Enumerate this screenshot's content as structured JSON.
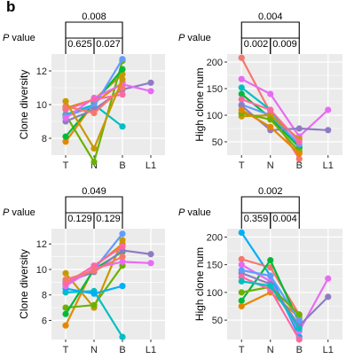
{
  "figure": {
    "panel_letter": "b"
  },
  "colors": [
    "#f8766d",
    "#e58700",
    "#c99800",
    "#a3a500",
    "#6bb100",
    "#00ba38",
    "#00bf7d",
    "#00c0af",
    "#00bcd8",
    "#00b0f6",
    "#619cff",
    "#b983ff",
    "#e76bf3",
    "#fd61d1",
    "#ff67a4",
    "#8e7cc3"
  ],
  "chart_data": [
    {
      "type": "line",
      "title": "",
      "xlabel": "",
      "ylabel": "Clone diversity",
      "categories": [
        "T",
        "N",
        "B",
        "L1"
      ],
      "ylim": [
        7,
        13
      ],
      "yticks": [
        8,
        10,
        12
      ],
      "grid": true,
      "pvalue_label": "P value",
      "brackets": [
        {
          "label": "0.008",
          "from": "T",
          "to": "B",
          "level": "top"
        },
        {
          "label": "0.625",
          "from": "T",
          "to": "N",
          "level": "bottom"
        },
        {
          "label": "0.027",
          "from": "N",
          "to": "B",
          "level": "bottom"
        }
      ],
      "series": [
        {
          "color": "#e58700",
          "values": [
            7.8,
            10.1,
            11.3,
            null
          ]
        },
        {
          "color": "#c99800",
          "values": [
            9.8,
            10.3,
            11.8,
            null
          ]
        },
        {
          "color": "#6bb100",
          "values": [
            9.4,
            6.6,
            12.6,
            null
          ]
        },
        {
          "color": "#00ba38",
          "values": [
            8.1,
            10.1,
            12.1,
            null
          ]
        },
        {
          "color": "#00bfc4",
          "values": [
            9.4,
            10.0,
            8.7,
            null
          ]
        },
        {
          "color": "#619cff",
          "values": [
            9.3,
            9.9,
            12.7,
            null
          ]
        },
        {
          "color": "#8e7cc3",
          "values": [
            9.0,
            9.7,
            10.9,
            11.3
          ]
        },
        {
          "color": "#e76bf3",
          "values": [
            9.2,
            10.4,
            11.2,
            10.8
          ]
        },
        {
          "color": "#ff67a4",
          "values": [
            9.7,
            10.3,
            10.6,
            null
          ]
        },
        {
          "color": "#f8766d",
          "values": [
            9.9,
            9.5,
            11.0,
            null
          ]
        },
        {
          "color": "#c99800",
          "values": [
            10.2,
            7.4,
            11.5,
            null
          ]
        }
      ]
    },
    {
      "type": "line",
      "title": "",
      "xlabel": "",
      "ylabel": "High clone num",
      "categories": [
        "T",
        "N",
        "B",
        "L1"
      ],
      "ylim": [
        25,
        215
      ],
      "yticks": [
        50,
        100,
        150,
        200
      ],
      "grid": true,
      "pvalue_label": "P value",
      "brackets": [
        {
          "label": "0.004",
          "from": "T",
          "to": "B",
          "level": "top"
        },
        {
          "label": "0.002",
          "from": "T",
          "to": "N",
          "level": "bottom"
        },
        {
          "label": "0.009",
          "from": "N",
          "to": "B",
          "level": "bottom"
        }
      ],
      "series": [
        {
          "color": "#f8766d",
          "values": [
            208,
            105,
            18,
            null
          ]
        },
        {
          "color": "#e76bf3",
          "values": [
            168,
            140,
            60,
            110
          ]
        },
        {
          "color": "#00bfc4",
          "values": [
            152,
            110,
            38,
            null
          ]
        },
        {
          "color": "#00ba38",
          "values": [
            140,
            95,
            40,
            null
          ]
        },
        {
          "color": "#619cff",
          "values": [
            120,
            100,
            45,
            null
          ]
        },
        {
          "color": "#8e7cc3",
          "values": [
            118,
            72,
            75,
            72
          ]
        },
        {
          "color": "#c99800",
          "values": [
            98,
            100,
            55,
            null
          ]
        },
        {
          "color": "#6bb100",
          "values": [
            104,
            92,
            32,
            null
          ]
        },
        {
          "color": "#ff67a4",
          "values": [
            130,
            110,
            50,
            null
          ]
        },
        {
          "color": "#e58700",
          "values": [
            110,
            78,
            28,
            null
          ]
        }
      ]
    },
    {
      "type": "line",
      "title": "",
      "xlabel": "",
      "ylabel": "Clone diversity",
      "categories": [
        "T",
        "N",
        "B",
        "L1"
      ],
      "ylim": [
        4.5,
        13.2
      ],
      "yticks": [
        6,
        8,
        10,
        12
      ],
      "grid": true,
      "pvalue_label": "P value",
      "brackets": [
        {
          "label": "0.049",
          "from": "T",
          "to": "B",
          "level": "top"
        },
        {
          "label": "0.129",
          "from": "T",
          "to": "N",
          "level": "bottom"
        },
        {
          "label": "0.129",
          "from": "N",
          "to": "B",
          "level": "bottom"
        }
      ],
      "series": [
        {
          "color": "#e58700",
          "values": [
            5.6,
            10.2,
            12.0,
            null
          ]
        },
        {
          "color": "#c99800",
          "values": [
            9.7,
            7.0,
            12.3,
            null
          ]
        },
        {
          "color": "#6bb100",
          "values": [
            7.0,
            7.2,
            10.3,
            null
          ]
        },
        {
          "color": "#00ba38",
          "values": [
            6.5,
            10.0,
            11.4,
            null
          ]
        },
        {
          "color": "#00bfc4",
          "values": [
            8.2,
            8.3,
            4.7,
            null
          ]
        },
        {
          "color": "#00b0f6",
          "values": [
            8.5,
            8.1,
            8.7,
            null
          ]
        },
        {
          "color": "#619cff",
          "values": [
            8.8,
            10.0,
            12.8,
            null
          ]
        },
        {
          "color": "#8e7cc3",
          "values": [
            9.0,
            9.8,
            11.5,
            11.2
          ]
        },
        {
          "color": "#e76bf3",
          "values": [
            8.7,
            10.1,
            10.6,
            10.5
          ]
        },
        {
          "color": "#ff67a4",
          "values": [
            8.9,
            10.3,
            11.8,
            null
          ]
        },
        {
          "color": "#f8766d",
          "values": [
            9.2,
            9.9,
            11.0,
            null
          ]
        }
      ]
    },
    {
      "type": "line",
      "title": "",
      "xlabel": "",
      "ylabel": "High clone num",
      "categories": [
        "T",
        "N",
        "B",
        "L1"
      ],
      "ylim": [
        15,
        215
      ],
      "yticks": [
        50,
        100,
        150,
        200
      ],
      "grid": true,
      "pvalue_label": "P value",
      "brackets": [
        {
          "label": "0.002",
          "from": "T",
          "to": "B",
          "level": "top"
        },
        {
          "label": "0.359",
          "from": "T",
          "to": "N",
          "level": "bottom"
        },
        {
          "label": "0.004",
          "from": "N",
          "to": "B",
          "level": "bottom"
        }
      ],
      "series": [
        {
          "color": "#00b0f6",
          "values": [
            208,
            130,
            20,
            null
          ]
        },
        {
          "color": "#f8766d",
          "values": [
            160,
            145,
            60,
            null
          ]
        },
        {
          "color": "#00ba38",
          "values": [
            85,
            158,
            45,
            null
          ]
        },
        {
          "color": "#e58700",
          "values": [
            75,
            100,
            55,
            null
          ]
        },
        {
          "color": "#e76bf3",
          "values": [
            150,
            120,
            30,
            125
          ]
        },
        {
          "color": "#8e7cc3",
          "values": [
            135,
            115,
            40,
            92
          ]
        },
        {
          "color": "#619cff",
          "values": [
            140,
            130,
            50,
            null
          ]
        },
        {
          "color": "#6bb100",
          "values": [
            100,
            110,
            60,
            null
          ]
        },
        {
          "color": "#ff67a4",
          "values": [
            128,
            105,
            15,
            null
          ]
        },
        {
          "color": "#00bfc4",
          "values": [
            120,
            112,
            35,
            null
          ]
        }
      ]
    }
  ]
}
